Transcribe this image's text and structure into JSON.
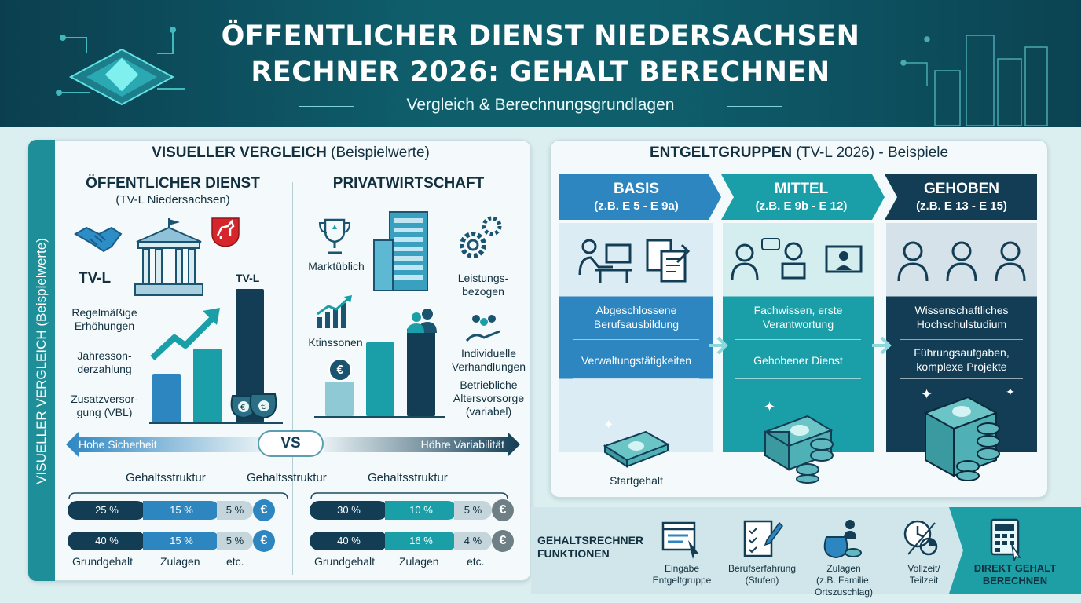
{
  "header": {
    "title_line1": "ÖFFENTLICHER DIENST NIEDERSACHSEN",
    "title_line2": "RECHNER 2026: GEHALT BERECHNEN",
    "subtitle": "Vergleich & Berechnungsgrundlagen"
  },
  "left": {
    "side_tab": "VISUELLER VERGLEICH (Beispielwerte)",
    "title_bold": "VISUELLER VERGLEICH",
    "title_rest": " (Beispielwerte)",
    "public": {
      "heading": "ÖFFENTLICHER DIENST",
      "sub": "(TV-L Niedersachsen)",
      "tvl_left": "TV-L",
      "tvl_bar": "TV-L",
      "items": [
        "Regelmäßige Erhöhungen",
        "Jahresson-derzahlung",
        "Zusatzversor-gung (VBL)"
      ]
    },
    "private": {
      "heading": "PRIVATWIRTSCHAFT",
      "items": [
        "Marktüblich",
        "Leistungs-bezogen",
        "Ktinssonen",
        "Individuelle Verhandlungen",
        "Betriebliche Altersvorsorge (variabel)"
      ]
    },
    "vs": {
      "left": "Hohe Sicherheit",
      "center": "VS",
      "right": "Höhre Variabilität"
    },
    "structure": {
      "label": "Gehaltsstruktur",
      "public_rows": [
        [
          "25 %",
          "15 %",
          "5 %"
        ],
        [
          "40 %",
          "15 %",
          "5 %"
        ]
      ],
      "private_rows": [
        [
          "30 %",
          "10 %",
          "5 %"
        ],
        [
          "40 %",
          "16 %",
          "4 %"
        ]
      ],
      "legend": [
        "Grundgehalt",
        "Zulagen",
        "etc."
      ],
      "currency": "€"
    }
  },
  "right": {
    "title_bold": "ENTGELTGRUPPEN",
    "title_rest": " (TV-L 2026) - Beispiele",
    "columns": [
      {
        "name": "BASIS",
        "range": "(z.B. E 5 - E 9a)",
        "text1": "Abgeschlossene Berufsausbildung",
        "text2": "Verwaltungstätigkeiten",
        "foot": "Startgehalt",
        "color": "#2e86c1"
      },
      {
        "name": "MITTEL",
        "range": "(z.B. E 9b - E 12)",
        "text1": "Fachwissen, erste Verantwortung",
        "text2": "Gehobener Dienst",
        "color": "#1a9fa8"
      },
      {
        "name": "GEHOBEN",
        "range": "(z.B. E 13 - E 15)",
        "text1": "Wissenschaftliches Hochschulstudium",
        "text2": "Führungsaufgaben, komplexe Projekte",
        "color": "#123d55"
      }
    ]
  },
  "features": {
    "title": "GEHALTSRECHNER FUNKTIONEN",
    "items": [
      {
        "l1": "Eingabe",
        "l2": "Entgeltgruppe"
      },
      {
        "l1": "Berufserfahrung",
        "l2": "(Stufen)"
      },
      {
        "l1": "Zulagen",
        "l2": "(z.B. Familie, Ortszuschlag)"
      },
      {
        "l1": "Vollzeit/",
        "l2": "Teilzeit"
      }
    ],
    "cta_l1": "DIREKT GEHALT",
    "cta_l2": "BERECHNEN"
  }
}
